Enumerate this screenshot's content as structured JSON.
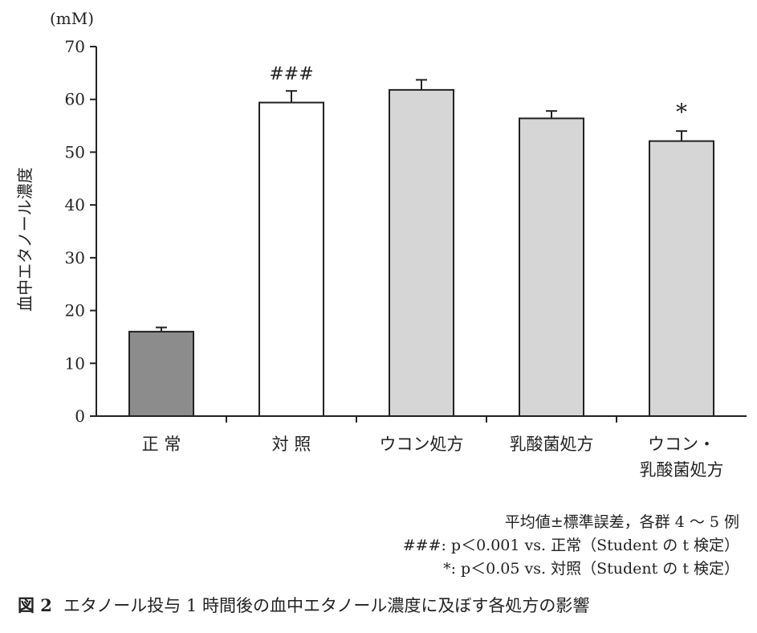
{
  "chart_data": {
    "type": "bar",
    "unit": "(mM)",
    "ylabel": "血中エタノール濃度",
    "ylim": [
      0,
      70
    ],
    "yticks": [
      0,
      10,
      20,
      30,
      40,
      50,
      60,
      70
    ],
    "categories": [
      [
        "正 常"
      ],
      [
        "対 照"
      ],
      [
        "ウコン処方"
      ],
      [
        "乳酸菌処方"
      ],
      [
        "ウコン・",
        "乳酸菌処方"
      ]
    ],
    "values": [
      16.0,
      59.4,
      61.8,
      56.4,
      52.1
    ],
    "errors": [
      0.8,
      2.2,
      1.9,
      1.4,
      1.9
    ],
    "bar_colors": [
      "#8c8c8c",
      "#ffffff",
      "#d6d6d6",
      "#d6d6d6",
      "#d6d6d6"
    ],
    "annotations": [
      "",
      "###",
      "",
      "",
      "*"
    ],
    "grid": false
  },
  "notes": {
    "line1": "平均値±標準誤差，各群 4 ～ 5 例",
    "line2": "###: p＜0.001 vs. 正常（Student の t 検定）",
    "line3": "*: p＜0.05 vs. 対照（Student の t 検定）"
  },
  "caption": {
    "label": "図 2",
    "text": "エタノール投与 1 時間後の血中エタノール濃度に及ぼす各処方の影響"
  }
}
